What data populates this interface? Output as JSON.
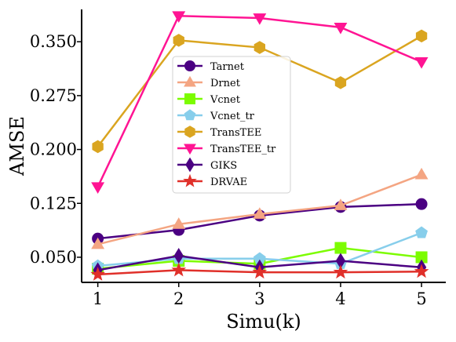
{
  "chart_data": {
    "type": "line",
    "xlabel": "Simu(k)",
    "ylabel": "AMSE",
    "x": [
      1,
      2,
      3,
      4,
      5
    ],
    "xticks": [
      "1",
      "2",
      "3",
      "4",
      "5"
    ],
    "yticks": [
      "0.050",
      "0.125",
      "0.200",
      "0.275",
      "0.350"
    ],
    "ytick_values": [
      0.05,
      0.125,
      0.2,
      0.275,
      0.35
    ],
    "xlim": [
      0.8,
      5.3
    ],
    "ylim": [
      0.015,
      0.395
    ],
    "grid": false,
    "legend_position": "center",
    "series": [
      {
        "name": "Tarnet",
        "color": "#4b0082",
        "marker": "circle",
        "values": [
          0.076,
          0.088,
          0.108,
          0.12,
          0.124
        ]
      },
      {
        "name": "Drnet",
        "color": "#f4a582",
        "marker": "triangle-up",
        "values": [
          0.068,
          0.096,
          0.11,
          0.122,
          0.165
        ]
      },
      {
        "name": "Vcnet",
        "color": "#7cfc00",
        "marker": "square",
        "values": [
          0.034,
          0.045,
          0.041,
          0.063,
          0.05
        ]
      },
      {
        "name": "Vcnet_tr",
        "color": "#87ceeb",
        "marker": "pentagon",
        "values": [
          0.038,
          0.048,
          0.048,
          0.041,
          0.084
        ]
      },
      {
        "name": "TransTEE",
        "color": "#daa520",
        "marker": "hexagon",
        "values": [
          0.204,
          0.352,
          0.342,
          0.293,
          0.358
        ]
      },
      {
        "name": "TransTEE_tr",
        "color": "#ff1493",
        "marker": "triangle-down",
        "values": [
          0.148,
          0.386,
          0.383,
          0.37,
          0.322
        ]
      },
      {
        "name": "GIKS",
        "color": "#4b0082",
        "marker": "diamond",
        "values": [
          0.032,
          0.052,
          0.036,
          0.045,
          0.036
        ]
      },
      {
        "name": "DRVAE",
        "color": "#e0302a",
        "marker": "star",
        "values": [
          0.026,
          0.032,
          0.029,
          0.029,
          0.03
        ]
      }
    ]
  }
}
